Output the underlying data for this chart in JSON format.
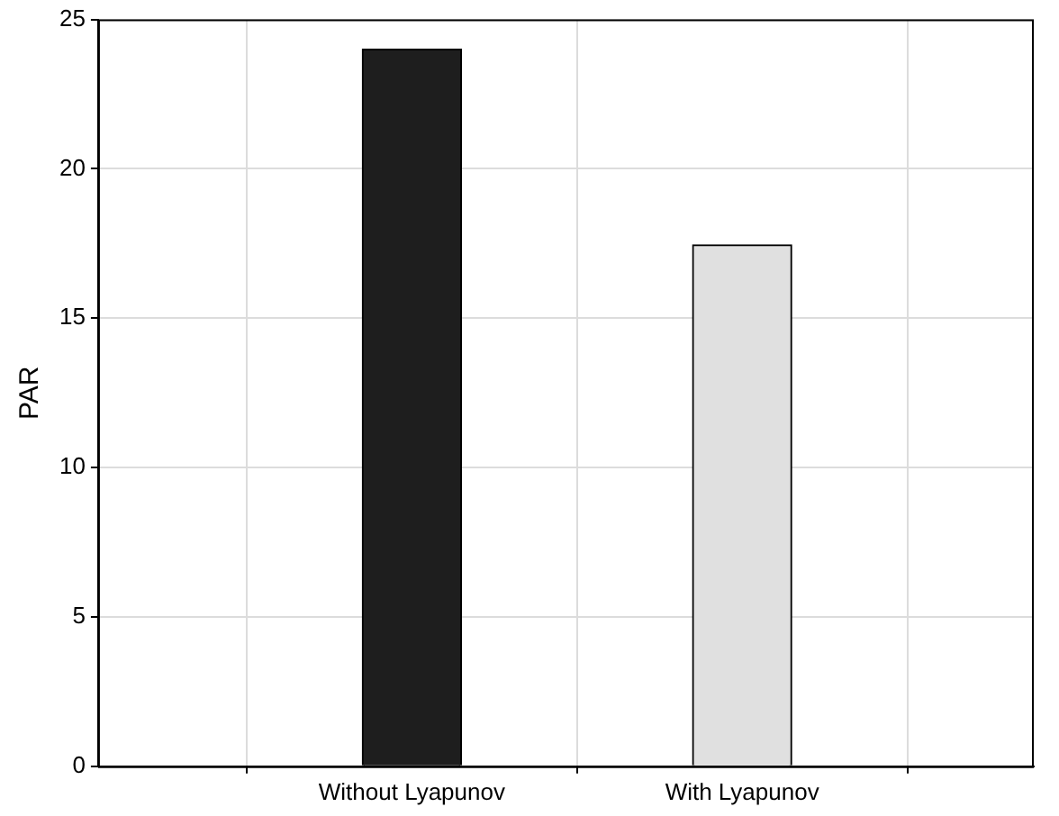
{
  "chart_data": {
    "type": "bar",
    "ylabel": "PAR",
    "categories": [
      "Without Lyapunov",
      "With Lyapunov"
    ],
    "values": [
      24,
      17.45
    ],
    "colors": [
      "#1e1e1e",
      "#e0e0e0"
    ],
    "ylim": [
      0,
      25
    ],
    "yticks": [
      0,
      5,
      10,
      15,
      20,
      25
    ],
    "grid": true,
    "legend": false
  }
}
